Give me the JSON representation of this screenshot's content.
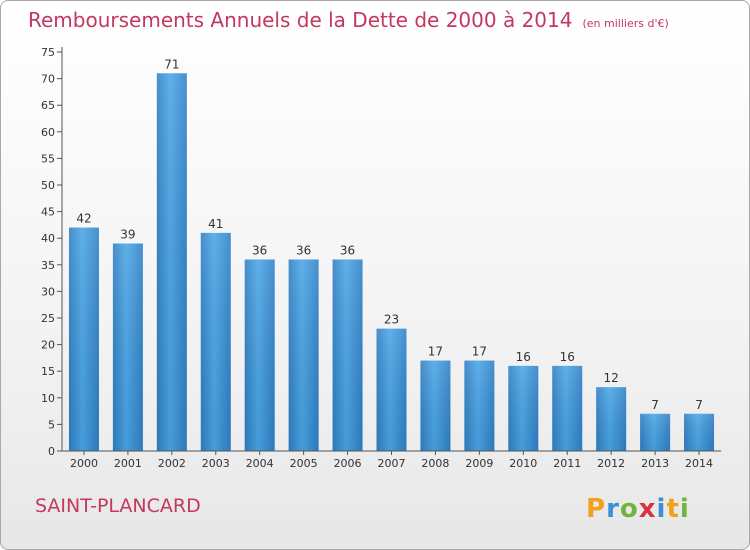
{
  "header": {
    "title": "Remboursements Annuels de la Dette de 2000 à 2014",
    "subtitle": "(en milliers d'€)"
  },
  "footer": {
    "location": "SAINT-PLANCARD",
    "logo_text": "Proxiti"
  },
  "colors": {
    "bar": "#3f97d8",
    "title": "#c4375f"
  },
  "chart_data": {
    "type": "bar",
    "categories": [
      "2000",
      "2001",
      "2002",
      "2003",
      "2004",
      "2005",
      "2006",
      "2007",
      "2008",
      "2009",
      "2010",
      "2011",
      "2012",
      "2013",
      "2014"
    ],
    "values": [
      42,
      39,
      71,
      41,
      36,
      36,
      36,
      23,
      17,
      17,
      16,
      16,
      12,
      7,
      7
    ],
    "ylim": [
      0,
      75
    ],
    "yticks": [
      0,
      5,
      10,
      15,
      20,
      25,
      30,
      35,
      40,
      45,
      50,
      55,
      60,
      65,
      70,
      75
    ],
    "grid": false,
    "legend": "none"
  }
}
